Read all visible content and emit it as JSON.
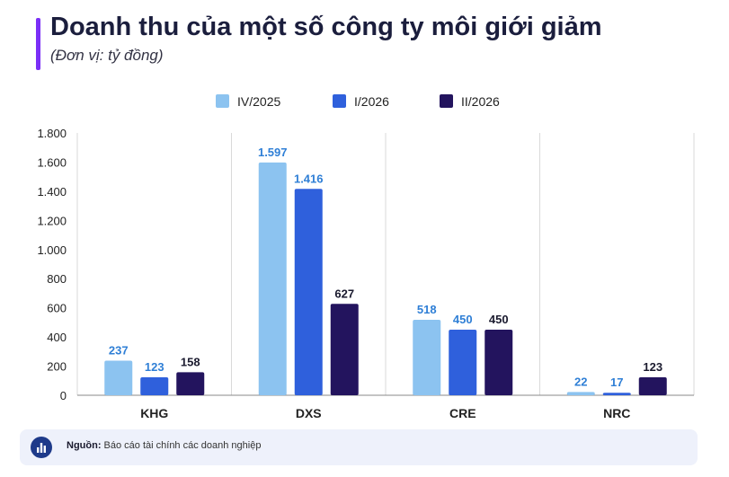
{
  "header": {
    "title": "Doanh thu của một số công ty môi giới giảm",
    "subtitle": "(Đơn vị: tỷ đồng)"
  },
  "footer": {
    "source_label": "Nguồn:",
    "source_text": "Báo cáo tài chính các doanh nghiệp",
    "icon": "bar-chart-icon"
  },
  "chart_data": {
    "type": "bar",
    "title": "Doanh thu của một số công ty môi giới giảm",
    "subtitle": "(Đơn vị: tỷ đồng)",
    "categories": [
      "KHG",
      "DXS",
      "CRE",
      "NRC"
    ],
    "series": [
      {
        "name": "IV/2025",
        "values": [
          237,
          1597,
          518,
          22
        ],
        "labels": [
          "237",
          "1.597",
          "518",
          "22"
        ],
        "color": "#8cc3f0",
        "label_color": "#2f7fd6"
      },
      {
        "name": "I/2026",
        "values": [
          123,
          1416,
          450,
          17
        ],
        "labels": [
          "123",
          "1.416",
          "450",
          "17"
        ],
        "color": "#2f60dc",
        "label_color": "#2f7fd6"
      },
      {
        "name": "II/2026",
        "values": [
          158,
          627,
          450,
          123
        ],
        "labels": [
          "158",
          "627",
          "450",
          "123"
        ],
        "color": "#23145e",
        "label_color": "#1a1a2e"
      }
    ],
    "ylim": [
      0,
      1800
    ],
    "yticks": [
      0,
      200,
      400,
      600,
      800,
      1000,
      1200,
      1400,
      1600,
      1800
    ],
    "ytick_labels": [
      "0",
      "200",
      "400",
      "600",
      "800",
      "1.000",
      "1.200",
      "1.400",
      "1.600",
      "1.800"
    ],
    "xlabel": "",
    "ylabel": "",
    "grid": "vertical separators",
    "legend_position": "top-center"
  }
}
